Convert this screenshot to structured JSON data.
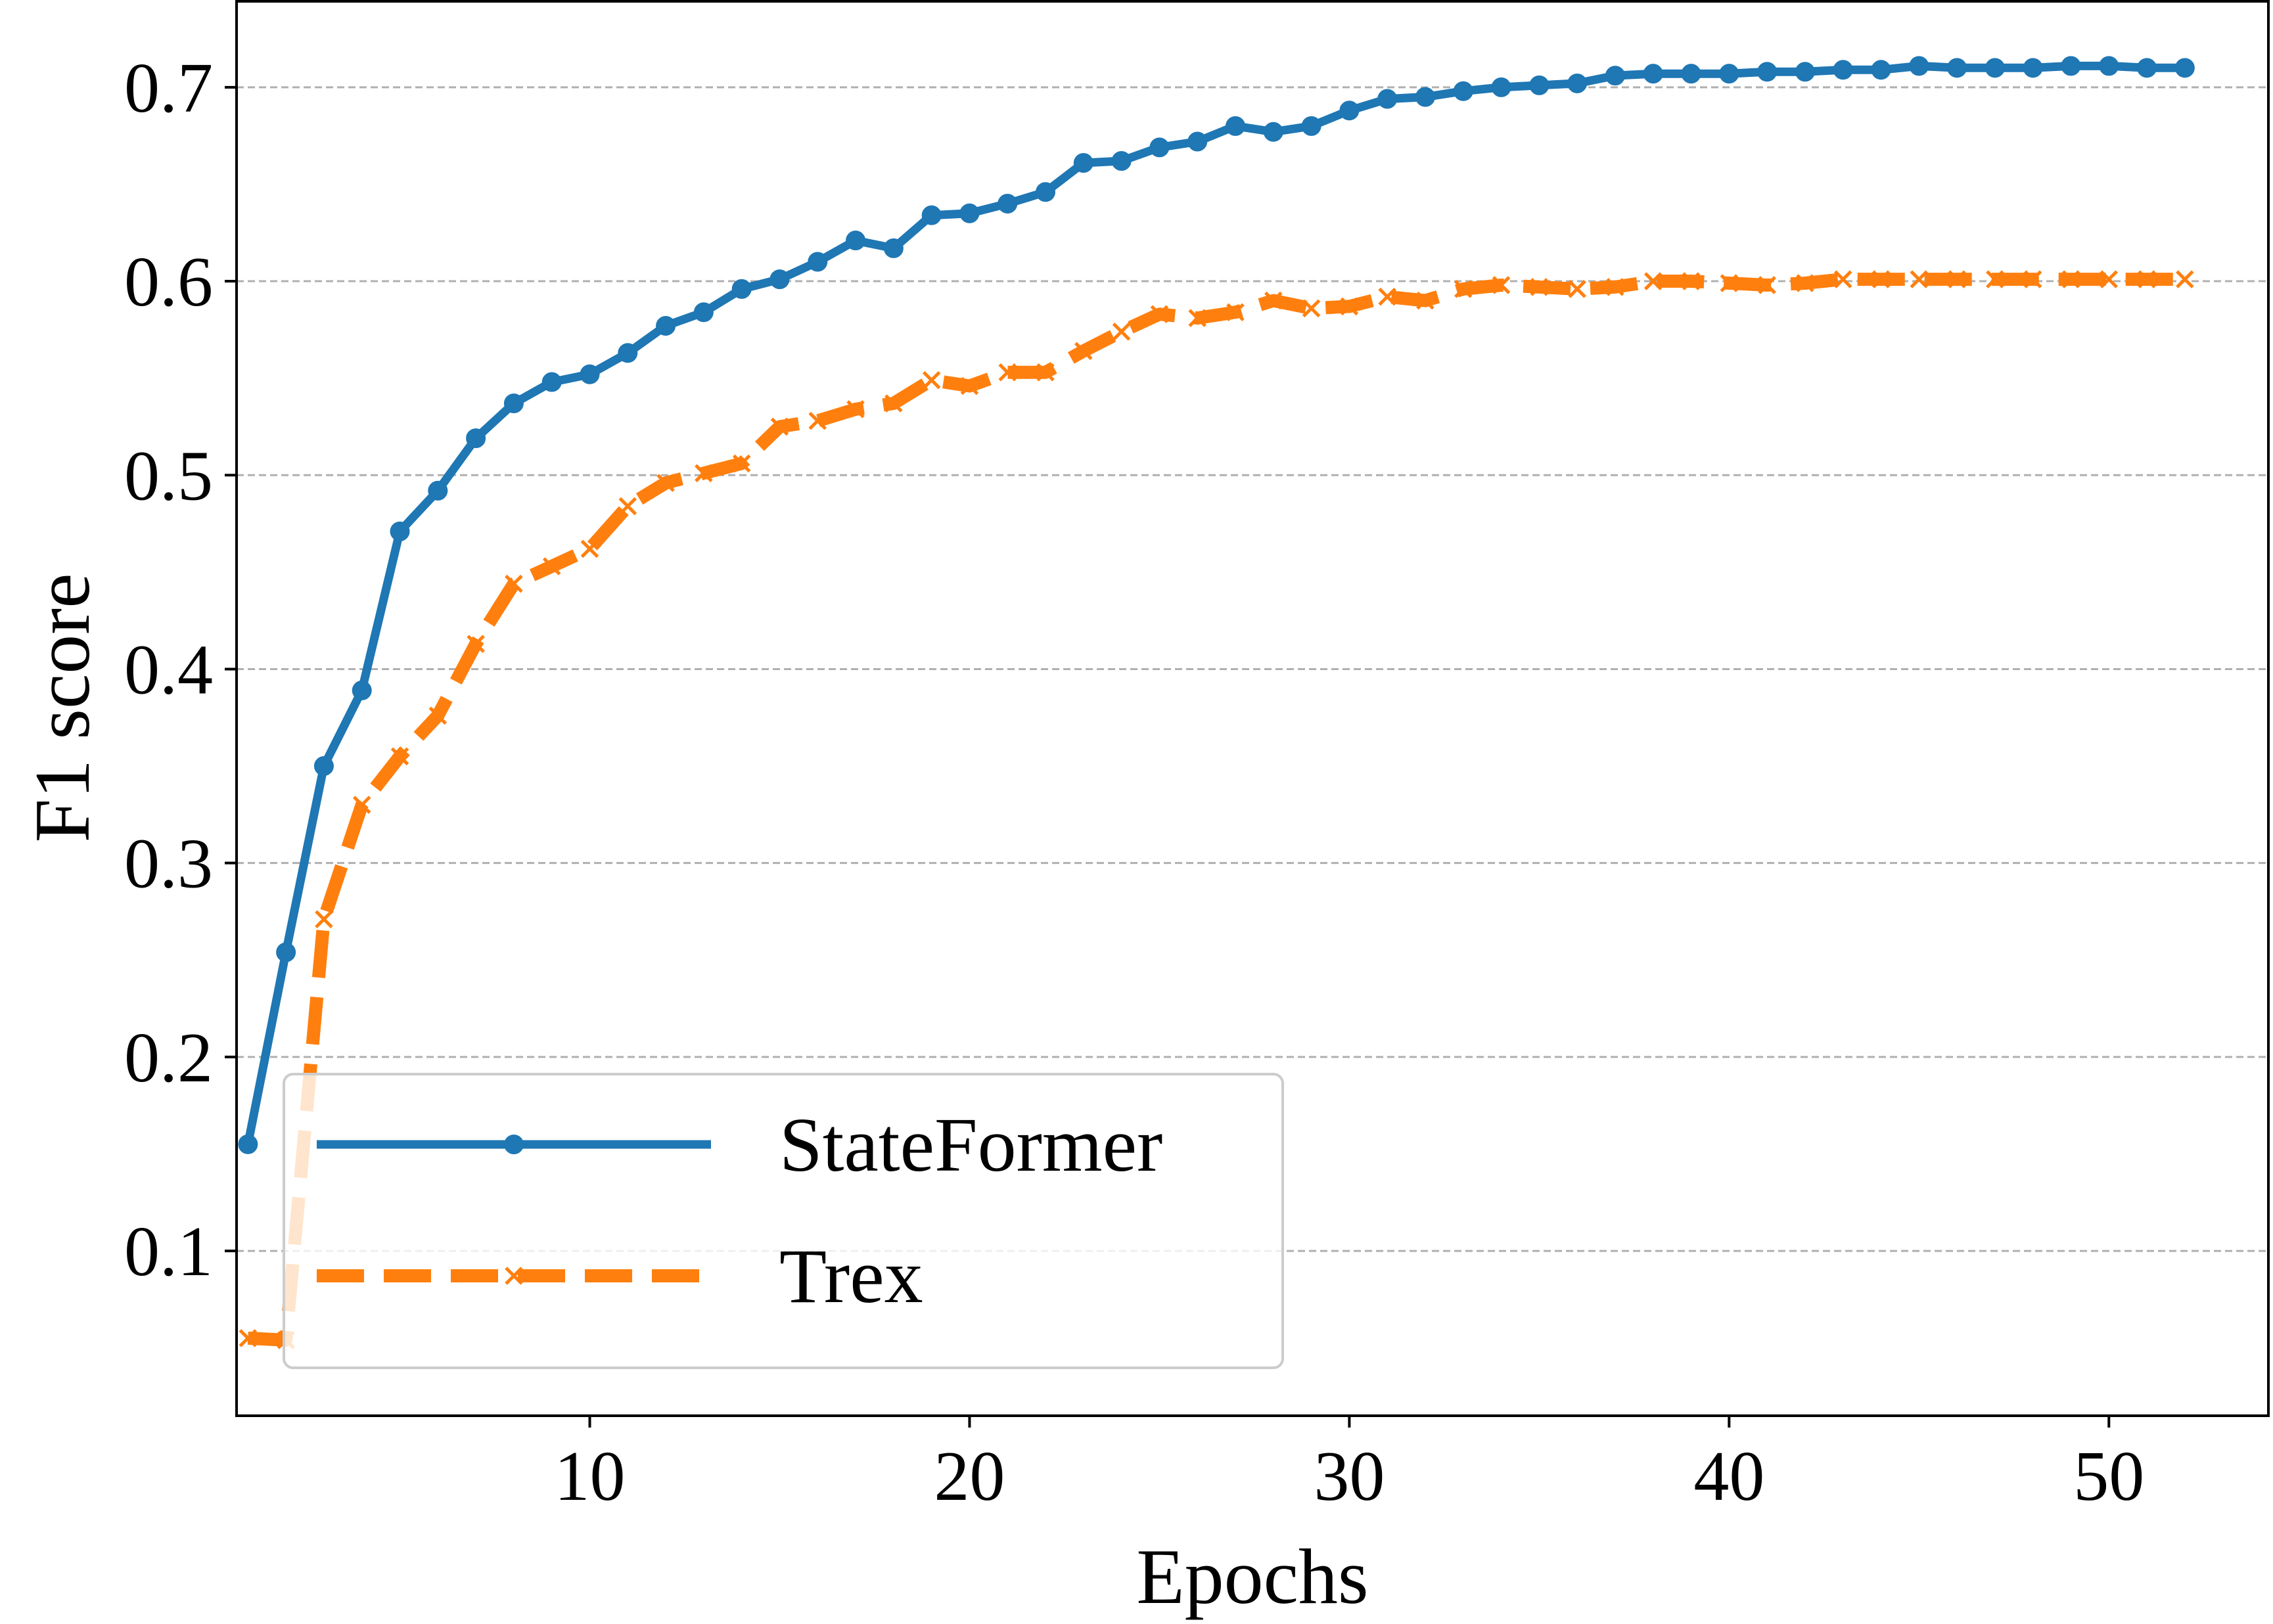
{
  "chart_data": {
    "type": "line",
    "title": "",
    "xlabel": "Epochs",
    "ylabel": "F1 score",
    "xlim": [
      0.7,
      54.2
    ],
    "ylim": [
      0.015,
      0.745
    ],
    "xticks": [
      10,
      20,
      30,
      40,
      50
    ],
    "yticks": [
      0.1,
      0.2,
      0.3,
      0.4,
      0.5,
      0.6,
      0.7
    ],
    "xtick_labels": [
      "10",
      "20",
      "30",
      "40",
      "50"
    ],
    "ytick_labels": [
      "0.1",
      "0.2",
      "0.3",
      "0.4",
      "0.5",
      "0.6",
      "0.7"
    ],
    "grid": "horizontal dashed",
    "legend_position": "lower-left",
    "x": [
      1,
      2,
      3,
      4,
      5,
      6,
      7,
      8,
      9,
      10,
      11,
      12,
      13,
      14,
      15,
      16,
      17,
      18,
      19,
      20,
      21,
      22,
      23,
      24,
      25,
      26,
      27,
      28,
      29,
      30,
      31,
      32,
      33,
      34,
      35,
      36,
      37,
      38,
      39,
      40,
      41,
      42,
      43,
      44,
      45,
      46,
      47,
      48,
      49,
      50,
      51,
      52
    ],
    "series": [
      {
        "name": "StateFormer",
        "color": "#1f77b4",
        "line_style": "solid",
        "marker": "circle",
        "values": [
          0.155,
          0.254,
          0.35,
          0.389,
          0.471,
          0.492,
          0.519,
          0.537,
          0.548,
          0.552,
          0.563,
          0.577,
          0.584,
          0.596,
          0.601,
          0.61,
          0.621,
          0.617,
          0.634,
          0.635,
          0.64,
          0.646,
          0.661,
          0.662,
          0.669,
          0.672,
          0.68,
          0.677,
          0.68,
          0.688,
          0.694,
          0.695,
          0.698,
          0.7,
          0.701,
          0.702,
          0.706,
          0.707,
          0.707,
          0.707,
          0.708,
          0.708,
          0.709,
          0.709,
          0.711,
          0.71,
          0.71,
          0.71,
          0.711,
          0.711,
          0.71,
          0.71
        ]
      },
      {
        "name": "Trex",
        "color": "#ff7f0e",
        "line_style": "dashed",
        "marker": "x",
        "values": [
          0.055,
          0.054,
          0.271,
          0.33,
          0.355,
          0.376,
          0.413,
          0.444,
          0.453,
          0.462,
          0.484,
          0.496,
          0.501,
          0.506,
          0.525,
          0.528,
          0.534,
          0.537,
          0.549,
          0.546,
          0.553,
          0.553,
          0.564,
          0.574,
          0.583,
          0.581,
          0.584,
          0.59,
          0.586,
          0.587,
          0.592,
          0.59,
          0.596,
          0.598,
          0.597,
          0.596,
          0.597,
          0.6,
          0.6,
          0.599,
          0.598,
          0.599,
          0.601,
          0.601,
          0.601,
          0.601,
          0.601,
          0.601,
          0.601,
          0.601,
          0.601,
          0.601
        ]
      }
    ]
  }
}
